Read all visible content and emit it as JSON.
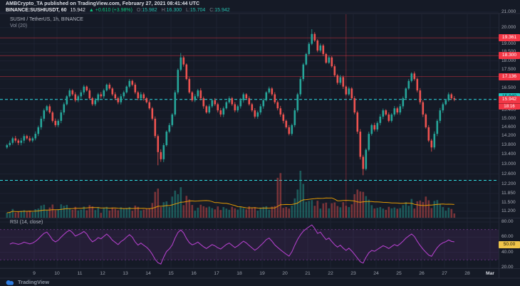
{
  "header": {
    "published_line": "AMBCrypto_TA published on TradingView.com, February 27, 2021 08:41:44 UTC",
    "symbol_line": {
      "symbol": "BINANCE:SUSHIUSDT, 60",
      "last": "15.942",
      "change": "▲ +0.610 (+3.98%)",
      "o_label": "O:",
      "o": "15.982",
      "h_label": "H:",
      "h": "16.300",
      "l_label": "L:",
      "l": "15.704",
      "c_label": "C:",
      "c": "15.942"
    }
  },
  "price_pane": {
    "title": "SUSHI / TetherUS, 1h, BINANCE",
    "vol_label": "Vol (20)"
  },
  "rsi_pane": {
    "label": "RSI (14, close)"
  },
  "price_axis": {
    "ticks": [
      {
        "label": "21.000",
        "value": 21.0
      },
      {
        "label": "20.000",
        "value": 20.0
      },
      {
        "label": "19.000",
        "value": 19.0
      },
      {
        "label": "18.500",
        "value": 18.5
      },
      {
        "label": "18.000",
        "value": 18.0
      },
      {
        "label": "17.500",
        "value": 17.5
      },
      {
        "label": "17.000",
        "value": 17.0
      },
      {
        "label": "16.500",
        "value": 16.5
      },
      {
        "label": "15.400",
        "value": 15.4
      },
      {
        "label": "15.000",
        "value": 15.0
      },
      {
        "label": "14.600",
        "value": 14.6
      },
      {
        "label": "14.200",
        "value": 14.2
      },
      {
        "label": "13.800",
        "value": 13.8
      },
      {
        "label": "13.400",
        "value": 13.4
      },
      {
        "label": "13.000",
        "value": 13.0
      },
      {
        "label": "12.600",
        "value": 12.6
      },
      {
        "label": "12.200",
        "value": 12.2
      },
      {
        "label": "11.850",
        "value": 11.85
      },
      {
        "label": "11.500",
        "value": 11.5
      },
      {
        "label": "11.200",
        "value": 11.2
      }
    ],
    "level_badges": [
      {
        "label": "19.361",
        "value": 19.361,
        "color": "#f23645"
      },
      {
        "label": "18.300",
        "value": 18.3,
        "color": "#f23645"
      },
      {
        "label": "17.136",
        "value": 17.136,
        "color": "#f23645"
      }
    ],
    "cyan_badge": {
      "label": "15.940",
      "value": 15.94,
      "color": "#21c8c4"
    },
    "current": {
      "price": "15.942",
      "value": 15.942,
      "countdown": "18:16",
      "color": "#f23645"
    }
  },
  "rsi_axis": {
    "ticks": [
      {
        "label": "80.00",
        "value": 80
      },
      {
        "label": "60.00",
        "value": 60
      },
      {
        "label": "40.00",
        "value": 40
      },
      {
        "label": "20.00",
        "value": 20
      }
    ],
    "badge": {
      "label": "50.00",
      "value": 50,
      "color": "#efc54a"
    }
  },
  "time_axis": {
    "labels": [
      {
        "text": "9",
        "index": 10
      },
      {
        "text": "10",
        "index": 18
      },
      {
        "text": "11",
        "index": 26
      },
      {
        "text": "12",
        "index": 34
      },
      {
        "text": "13",
        "index": 42
      },
      {
        "text": "14",
        "index": 50
      },
      {
        "text": "15",
        "index": 58
      },
      {
        "text": "16",
        "index": 66
      },
      {
        "text": "17",
        "index": 74
      },
      {
        "text": "18",
        "index": 82
      },
      {
        "text": "19",
        "index": 90
      },
      {
        "text": "20",
        "index": 98
      },
      {
        "text": "21",
        "index": 106
      },
      {
        "text": "22",
        "index": 114
      },
      {
        "text": "23",
        "index": 122
      },
      {
        "text": "24",
        "index": 130
      },
      {
        "text": "25",
        "index": 138
      },
      {
        "text": "26",
        "index": 146
      },
      {
        "text": "27",
        "index": 154
      },
      {
        "text": "28",
        "index": 162
      },
      {
        "text": "Mar",
        "index": 170,
        "month": true
      }
    ]
  },
  "footer": {
    "brand": "TradingView"
  },
  "colors": {
    "up": "#26a69a",
    "down": "#ef5350",
    "vol_ma": "#f7a600",
    "rsi": "#b040c8",
    "cyan_line": "#2ee0e6",
    "red_line": "#f23645",
    "grid": "#1d2231",
    "divider": "#262b3a"
  },
  "chart_data": {
    "type": "candlestick+volume+rsi",
    "title": "SUSHI / TetherUS, 1h, BINANCE",
    "symbol": "SUSHIUSDT",
    "exchange": "BINANCE",
    "interval": "1h",
    "scale": "log",
    "price_range": [
      11.2,
      21.0
    ],
    "rsi_range_labels": [
      20,
      80
    ],
    "rsi_bands": [
      70,
      30
    ],
    "rsi_mid": 50,
    "levels": {
      "red_lines": [
        19.361,
        18.3,
        17.136
      ],
      "cyan_dashed": [
        15.94,
        12.35
      ],
      "red_vline_index": 119
    },
    "first_open": 13.7,
    "closes": [
      13.8,
      13.9,
      14.1,
      14.0,
      13.9,
      14.0,
      14.2,
      14.1,
      14.0,
      14.1,
      14.3,
      14.6,
      15.0,
      15.4,
      15.6,
      15.3,
      14.9,
      14.7,
      14.9,
      15.3,
      15.7,
      16.1,
      16.4,
      16.2,
      15.9,
      16.1,
      16.3,
      16.6,
      16.4,
      16.0,
      15.7,
      15.9,
      16.2,
      16.1,
      16.4,
      16.7,
      16.5,
      16.2,
      16.0,
      15.8,
      16.1,
      16.3,
      16.6,
      16.9,
      16.7,
      16.3,
      16.0,
      16.2,
      16.0,
      15.8,
      15.5,
      15.0,
      14.2,
      13.5,
      13.2,
      13.8,
      14.4,
      14.7,
      15.2,
      16.3,
      17.5,
      18.2,
      17.8,
      17.0,
      16.3,
      15.9,
      16.1,
      16.4,
      16.0,
      15.6,
      15.3,
      15.6,
      15.9,
      15.7,
      15.4,
      15.2,
      15.5,
      15.8,
      16.0,
      15.7,
      15.4,
      15.6,
      15.9,
      16.2,
      16.0,
      15.7,
      15.4,
      15.1,
      15.3,
      15.6,
      15.9,
      16.3,
      16.5,
      16.2,
      15.8,
      15.5,
      15.2,
      14.9,
      14.6,
      14.3,
      14.7,
      15.4,
      16.2,
      17.0,
      17.8,
      18.4,
      19.0,
      19.6,
      19.2,
      18.6,
      18.9,
      18.4,
      17.9,
      18.2,
      17.7,
      17.2,
      16.8,
      17.1,
      16.6,
      16.2,
      16.5,
      16.0,
      15.3,
      14.4,
      13.3,
      12.8,
      13.6,
      14.3,
      14.7,
      14.5,
      14.8,
      15.1,
      15.4,
      15.2,
      14.9,
      15.2,
      15.5,
      15.3,
      15.6,
      16.0,
      16.5,
      16.9,
      17.3,
      17.0,
      16.4,
      15.8,
      15.2,
      14.6,
      14.0,
      13.7,
      14.3,
      14.9,
      15.4,
      15.7,
      15.9,
      16.2,
      16.0,
      15.942
    ],
    "wick_overrides": {
      "53": [
        0.08,
        0.55
      ],
      "61": [
        0.25,
        0.08
      ],
      "107": [
        0.3,
        0.08
      ],
      "125": [
        0.08,
        0.25
      ],
      "149": [
        0.08,
        0.18
      ]
    },
    "volume_overrides": {
      "52": 0.55,
      "53": 0.62,
      "58": 0.45,
      "60": 0.5,
      "61": 0.65,
      "95": 0.85,
      "96": 0.95,
      "102": 0.6,
      "103": 1.0,
      "104": 0.72,
      "122": 0.5,
      "123": 0.6,
      "125": 0.55,
      "142": 0.4,
      "147": 0.45
    }
  }
}
